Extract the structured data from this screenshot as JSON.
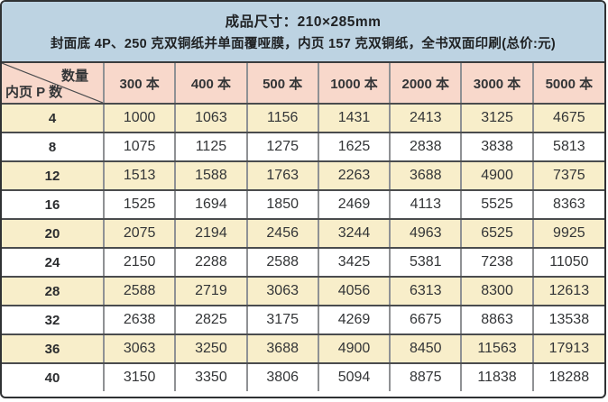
{
  "banner": {
    "line1": "成品尺寸：210×285mm",
    "line2": "封面底 4P、250 克双铜纸并单面覆哑膜，内页 157 克双铜纸，全书双面印刷(总价:元)"
  },
  "table": {
    "corner": {
      "top_right": "数量",
      "bottom_left": "内页 P 数"
    },
    "columns": [
      "300 本",
      "400 本",
      "500 本",
      "1000 本",
      "2000 本",
      "3000 本",
      "5000 本"
    ],
    "rows": [
      {
        "pages": "4",
        "prices": [
          1000,
          1063,
          1156,
          1431,
          2413,
          3125,
          4675
        ]
      },
      {
        "pages": "8",
        "prices": [
          1075,
          1125,
          1275,
          1625,
          2838,
          3838,
          5813
        ]
      },
      {
        "pages": "12",
        "prices": [
          1513,
          1588,
          1763,
          2263,
          3688,
          4900,
          7375
        ]
      },
      {
        "pages": "16",
        "prices": [
          1525,
          1694,
          1850,
          2469,
          4113,
          5525,
          8363
        ]
      },
      {
        "pages": "20",
        "prices": [
          2075,
          2194,
          2456,
          3244,
          4963,
          6525,
          9925
        ]
      },
      {
        "pages": "24",
        "prices": [
          2150,
          2288,
          2588,
          3425,
          5381,
          7238,
          11050
        ]
      },
      {
        "pages": "28",
        "prices": [
          2588,
          2719,
          3063,
          4056,
          6313,
          8300,
          12613
        ]
      },
      {
        "pages": "32",
        "prices": [
          2638,
          2825,
          3175,
          4269,
          6675,
          8863,
          13538
        ]
      },
      {
        "pages": "36",
        "prices": [
          3063,
          3250,
          3688,
          4900,
          8450,
          11563,
          17913
        ]
      },
      {
        "pages": "40",
        "prices": [
          3150,
          3350,
          3806,
          5094,
          8875,
          11838,
          18288
        ]
      }
    ]
  },
  "colors": {
    "banner_bg": "#bdd3e2",
    "header_bg": "#f8d8cb",
    "row_alt_bg": "#f8eeca",
    "row_bg": "#ffffff"
  },
  "chart_data": {
    "type": "table",
    "title": "成品尺寸：210×285mm",
    "subtitle": "封面底 4P、250 克双铜纸并单面覆哑膜，内页 157 克双铜纸，全书双面印刷(总价:元)",
    "row_axis_label": "内页 P 数",
    "column_axis_label": "数量",
    "categories": [
      "300 本",
      "400 本",
      "500 本",
      "1000 本",
      "2000 本",
      "3000 本",
      "5000 本"
    ],
    "series": [
      {
        "name": "4",
        "values": [
          1000,
          1063,
          1156,
          1431,
          2413,
          3125,
          4675
        ]
      },
      {
        "name": "8",
        "values": [
          1075,
          1125,
          1275,
          1625,
          2838,
          3838,
          5813
        ]
      },
      {
        "name": "12",
        "values": [
          1513,
          1588,
          1763,
          2263,
          3688,
          4900,
          7375
        ]
      },
      {
        "name": "16",
        "values": [
          1525,
          1694,
          1850,
          2469,
          4113,
          5525,
          8363
        ]
      },
      {
        "name": "20",
        "values": [
          2075,
          2194,
          2456,
          3244,
          4963,
          6525,
          9925
        ]
      },
      {
        "name": "24",
        "values": [
          2150,
          2288,
          2588,
          3425,
          5381,
          7238,
          11050
        ]
      },
      {
        "name": "28",
        "values": [
          2588,
          2719,
          3063,
          4056,
          6313,
          8300,
          12613
        ]
      },
      {
        "name": "32",
        "values": [
          2638,
          2825,
          3175,
          4269,
          6675,
          8863,
          13538
        ]
      },
      {
        "name": "36",
        "values": [
          3063,
          3250,
          3688,
          4900,
          8450,
          11563,
          17913
        ]
      },
      {
        "name": "40",
        "values": [
          3150,
          3350,
          3806,
          5094,
          8875,
          11838,
          18288
        ]
      }
    ]
  }
}
